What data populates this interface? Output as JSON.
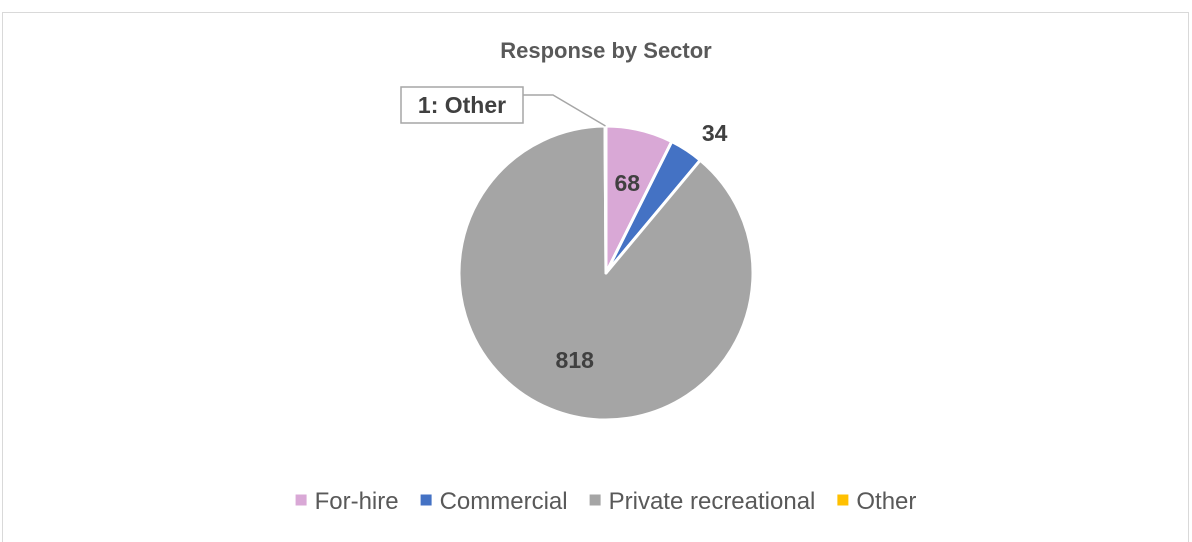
{
  "chart_data": {
    "type": "pie",
    "title": "Response by Sector",
    "slices": [
      {
        "name": "For-hire",
        "value": 68,
        "label": "68",
        "color": "#d9a8d6"
      },
      {
        "name": "Commercial",
        "value": 34,
        "label": "34",
        "color": "#4472c4"
      },
      {
        "name": "Private recreational",
        "value": 818,
        "label": "818",
        "color": "#a5a5a5"
      },
      {
        "name": "Other",
        "value": 1,
        "label": "1: Other",
        "color": "#ffc000"
      }
    ],
    "legend_position": "bottom"
  }
}
